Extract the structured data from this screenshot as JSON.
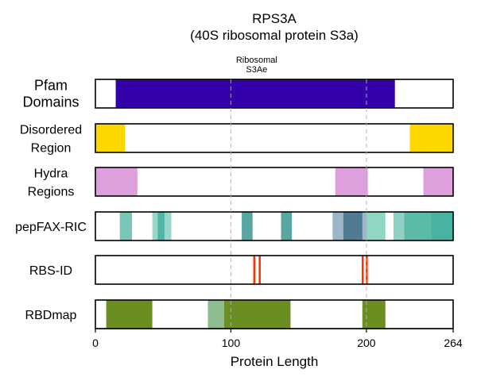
{
  "chart_data": {
    "type": "bar",
    "title": "RPS3A",
    "subtitle": "(40S ribosomal protein S3a)",
    "xlabel": "Protein Length",
    "xlim": [
      0,
      264
    ],
    "xticks": [
      0,
      100,
      200,
      264
    ],
    "xtick_labels": [
      "0",
      "100",
      "200",
      "264"
    ],
    "grid_x": [
      100,
      200
    ],
    "annotation": {
      "lines": [
        "Ribosomal",
        "S3Ae"
      ],
      "x": 119
    },
    "tracks": [
      {
        "key": "pfam",
        "label_lines": [
          "Pfam",
          "Domains"
        ],
        "segments": [
          {
            "start": 15,
            "end": 221,
            "color": "#3300aa",
            "opacity": 1
          }
        ]
      },
      {
        "key": "disorder",
        "label_lines": [
          "Disordered",
          "Region"
        ],
        "segments": [
          {
            "start": 0,
            "end": 22,
            "color": "#ffd700",
            "opacity": 1
          },
          {
            "start": 232,
            "end": 264,
            "color": "#ffd700",
            "opacity": 1
          }
        ]
      },
      {
        "key": "hydra",
        "label_lines": [
          "Hydra",
          "Regions"
        ],
        "segments": [
          {
            "start": 0,
            "end": 31,
            "color": "#dda0dd",
            "opacity": 1
          },
          {
            "start": 177,
            "end": 201,
            "color": "#dda0dd",
            "opacity": 1
          },
          {
            "start": 242,
            "end": 264,
            "color": "#dda0dd",
            "opacity": 1
          }
        ]
      },
      {
        "key": "pepfax",
        "label_lines": [
          "pepFAX-RIC"
        ],
        "segments": [
          {
            "start": 18,
            "end": 27,
            "color": "#20a08a",
            "opacity": 0.6
          },
          {
            "start": 42,
            "end": 56,
            "color": "#20a08a",
            "opacity": 0.45
          },
          {
            "start": 46,
            "end": 51,
            "color": "#20a08a",
            "opacity": 0.6
          },
          {
            "start": 108,
            "end": 116,
            "color": "#208a80",
            "opacity": 0.75
          },
          {
            "start": 137,
            "end": 145,
            "color": "#208a80",
            "opacity": 0.75
          },
          {
            "start": 175,
            "end": 200,
            "color": "#4a7a9a",
            "opacity": 0.55
          },
          {
            "start": 183,
            "end": 197,
            "color": "#2a5a7a",
            "opacity": 0.65
          },
          {
            "start": 200,
            "end": 214,
            "color": "#20b08a",
            "opacity": 0.5
          },
          {
            "start": 220,
            "end": 264,
            "color": "#20a08a",
            "opacity": 0.5
          },
          {
            "start": 228,
            "end": 264,
            "color": "#20a08a",
            "opacity": 0.45
          },
          {
            "start": 248,
            "end": 264,
            "color": "#20a08a",
            "opacity": 0.3
          }
        ]
      },
      {
        "key": "rbsid",
        "label_lines": [
          "RBS-ID"
        ],
        "segments": [
          {
            "start": 116.5,
            "end": 118,
            "color": "#ff3300",
            "opacity": 1
          },
          {
            "start": 120.5,
            "end": 122,
            "color": "#ff3300",
            "opacity": 1
          },
          {
            "start": 196.5,
            "end": 198,
            "color": "#ff3300",
            "opacity": 1
          },
          {
            "start": 199.5,
            "end": 201,
            "color": "#ff3300",
            "opacity": 1
          }
        ]
      },
      {
        "key": "rbdmap",
        "label_lines": [
          "RBDmap"
        ],
        "segments": [
          {
            "start": 8,
            "end": 42,
            "color": "#6b8e23",
            "opacity": 1
          },
          {
            "start": 83,
            "end": 95,
            "color": "#8fbc8f",
            "opacity": 1
          },
          {
            "start": 95,
            "end": 144,
            "color": "#6b8e23",
            "opacity": 1
          },
          {
            "start": 197,
            "end": 214,
            "color": "#6b8e23",
            "opacity": 1
          }
        ]
      }
    ]
  }
}
